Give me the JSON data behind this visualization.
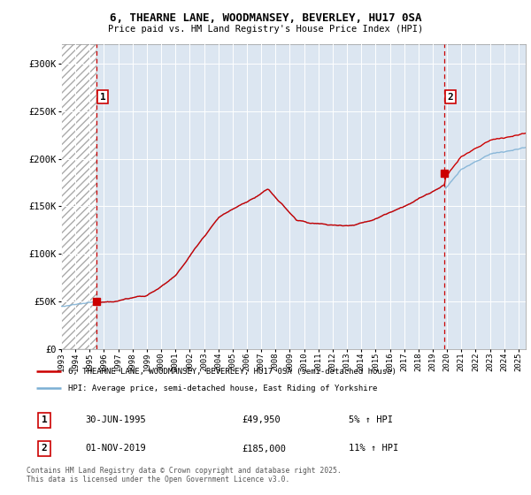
{
  "title": "6, THEARNE LANE, WOODMANSEY, BEVERLEY, HU17 0SA",
  "subtitle": "Price paid vs. HM Land Registry's House Price Index (HPI)",
  "xlim_start": 1993.0,
  "xlim_end": 2025.5,
  "ylim": [
    0,
    320000
  ],
  "background_color": "#ffffff",
  "plot_bg_color": "#dce6f1",
  "grid_color": "#b8cce4",
  "hatch_color": "#aaaaaa",
  "sale1_date": 1995.5,
  "sale1_price": 49950,
  "sale2_date": 2019.833,
  "sale2_price": 185000,
  "legend_property": "6, THEARNE LANE, WOODMANSEY, BEVERLEY, HU17 0SA (semi-detached house)",
  "legend_hpi": "HPI: Average price, semi-detached house, East Riding of Yorkshire",
  "footer": "Contains HM Land Registry data © Crown copyright and database right 2025.\nThis data is licensed under the Open Government Licence v3.0.",
  "property_color": "#cc0000",
  "hpi_color": "#7bafd4",
  "dashed_line_color": "#cc0000",
  "marker_color": "#cc0000",
  "sale1_date_str": "30-JUN-1995",
  "sale1_price_str": "£49,950",
  "sale1_pct_str": "5% ↑ HPI",
  "sale2_date_str": "01-NOV-2019",
  "sale2_price_str": "£185,000",
  "sale2_pct_str": "11% ↑ HPI"
}
